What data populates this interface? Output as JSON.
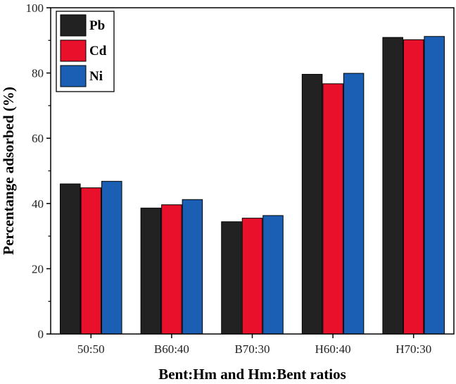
{
  "chart_data": {
    "type": "bar",
    "title": "",
    "xlabel": "Bent:Hm and Hm:Bent ratios",
    "ylabel": "Percentange adsorbed (%)",
    "ylim": [
      0,
      100
    ],
    "yticks": [
      0,
      20,
      40,
      60,
      80,
      100
    ],
    "categories": [
      "50:50",
      "B60:40",
      "B70:30",
      "H60:40",
      "H70:30"
    ],
    "series": [
      {
        "name": "Pb",
        "color": "#222222",
        "values": [
          46.0,
          38.6,
          34.4,
          79.6,
          90.9
        ]
      },
      {
        "name": "Cd",
        "color": "#e8102a",
        "values": [
          44.8,
          39.6,
          35.5,
          76.7,
          90.2
        ]
      },
      {
        "name": "Ni",
        "color": "#1a5fb4",
        "values": [
          46.8,
          41.2,
          36.3,
          79.9,
          91.2
        ]
      }
    ],
    "legend": "top-left",
    "grid": false
  }
}
